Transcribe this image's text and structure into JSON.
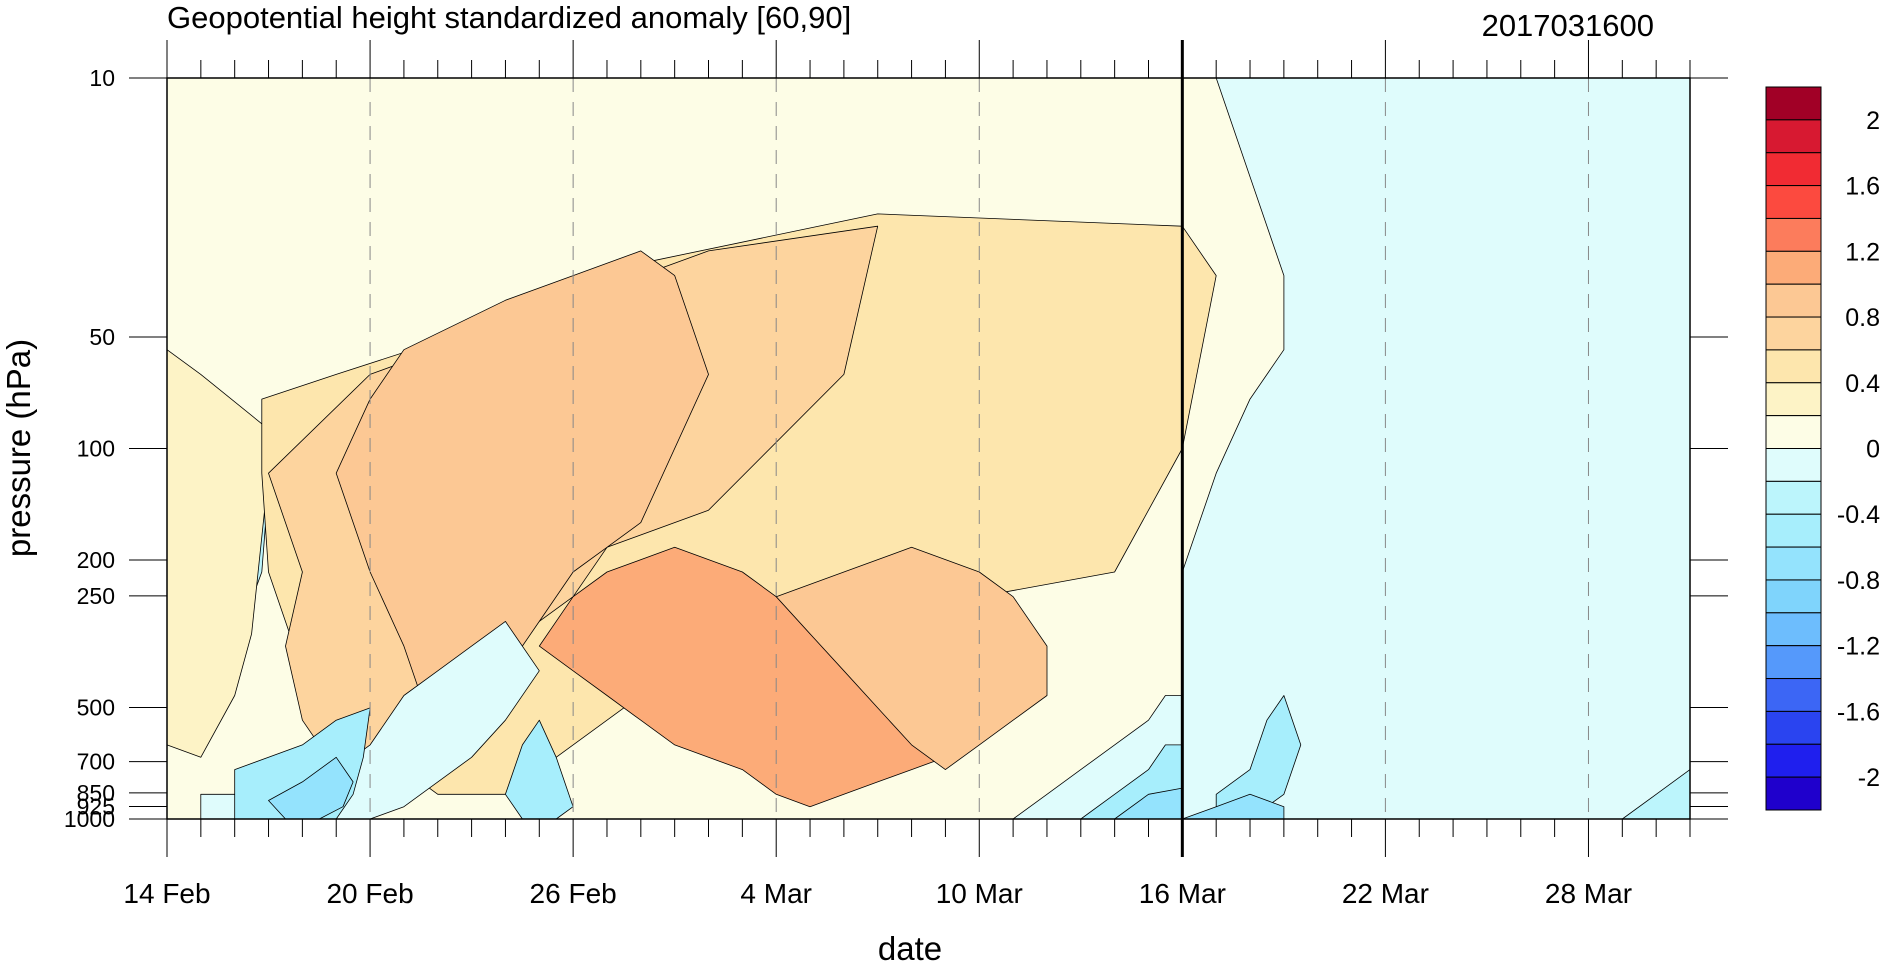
{
  "chart_data": {
    "type": "heatmap",
    "title": "Geopotential height standardized anomaly [60,90]",
    "date_label": "2017031600",
    "xlabel": "date",
    "ylabel": "pressure (hPa)",
    "x_tick_labels": [
      "14 Feb",
      "20 Feb",
      "26 Feb",
      "4 Mar",
      "10 Mar",
      "16 Mar",
      "22 Mar",
      "28 Mar"
    ],
    "x_tick_days": [
      0,
      6,
      12,
      18,
      24,
      30,
      36,
      42
    ],
    "x_range_days": [
      0,
      45
    ],
    "highlight_day": 30,
    "y_tick_labels": [
      "10",
      "50",
      "100",
      "200",
      "250",
      "500",
      "700",
      "850",
      "925",
      "1000"
    ],
    "y_tick_values": [
      10,
      50,
      100,
      200,
      250,
      500,
      700,
      850,
      925,
      1000
    ],
    "y_range": [
      10,
      1000
    ],
    "y_scale": "log",
    "y_reversed": true,
    "colorbar": {
      "labels": [
        "2",
        "1.6",
        "1.2",
        "0.8",
        "0.4",
        "0",
        "-0.4",
        "-0.8",
        "-1.2",
        "-1.6",
        "-2"
      ],
      "label_values": [
        2,
        1.6,
        1.2,
        0.8,
        0.4,
        0,
        -0.4,
        -0.8,
        -1.2,
        -1.6,
        -2
      ],
      "levels": [
        -2.2,
        -2.0,
        -1.8,
        -1.6,
        -1.4,
        -1.2,
        -1.0,
        -0.8,
        -0.6,
        -0.4,
        -0.2,
        0,
        0.2,
        0.4,
        0.6,
        0.8,
        1.0,
        1.2,
        1.4,
        1.6,
        1.8,
        2.0,
        2.2
      ],
      "colors": [
        "#1f00cc",
        "#1f1fee",
        "#2a44f0",
        "#3c66f5",
        "#5599fb",
        "#6dbdfd",
        "#7fd4fc",
        "#94e3fd",
        "#a7eefc",
        "#bcf5fc",
        "#dffcfc",
        "#fdfde6",
        "#fdf3c6",
        "#fde6ad",
        "#fdd49e",
        "#fcc894",
        "#fcab78",
        "#fc7c5c",
        "#fc4a3f",
        "#f12b33",
        "#d71931",
        "#a10026"
      ]
    },
    "regions": [
      {
        "value": -0.3,
        "points": [
          [
            0,
            30
          ],
          [
            1,
            29
          ],
          [
            2,
            28
          ],
          [
            3,
            27
          ],
          [
            2.8,
            20
          ],
          [
            2,
            14
          ],
          [
            1,
            12
          ],
          [
            0,
            12
          ]
        ]
      },
      {
        "value": 0.3,
        "points": [
          [
            0,
            38
          ],
          [
            1,
            36
          ],
          [
            2.8,
            32
          ],
          [
            3,
            28
          ],
          [
            2.5,
            15
          ],
          [
            2,
            10
          ],
          [
            1,
            5
          ],
          [
            0,
            6
          ]
        ]
      },
      {
        "value": 0.5,
        "points": [
          [
            2.8,
            34
          ],
          [
            5,
            36
          ],
          [
            9.5,
            40
          ],
          [
            14,
            45
          ],
          [
            21,
            49
          ],
          [
            30,
            48
          ],
          [
            31,
            44
          ],
          [
            30,
            30
          ],
          [
            28,
            20
          ],
          [
            24,
            18
          ],
          [
            20,
            15
          ],
          [
            18,
            14
          ],
          [
            16,
            12
          ],
          [
            14,
            10
          ],
          [
            13,
            8
          ],
          [
            12,
            6
          ],
          [
            11,
            4
          ],
          [
            10,
            2
          ],
          [
            8,
            2
          ],
          [
            6,
            6
          ],
          [
            4,
            12
          ],
          [
            3,
            20
          ],
          [
            2.8,
            28
          ]
        ]
      },
      {
        "value": 0.7,
        "points": [
          [
            6,
            36
          ],
          [
            12,
            42
          ],
          [
            16,
            46
          ],
          [
            21,
            48
          ],
          [
            20,
            36
          ],
          [
            16,
            25
          ],
          [
            13,
            22
          ],
          [
            12,
            18
          ],
          [
            10,
            14
          ],
          [
            9,
            10
          ],
          [
            8,
            6
          ],
          [
            7,
            3
          ],
          [
            6,
            2
          ],
          [
            5,
            4
          ],
          [
            4,
            8
          ],
          [
            3.5,
            14
          ],
          [
            4,
            20
          ],
          [
            3,
            28
          ]
        ]
      },
      {
        "value": 0.9,
        "points": [
          [
            7,
            38
          ],
          [
            10,
            42
          ],
          [
            12,
            44
          ],
          [
            14,
            46
          ],
          [
            15,
            44
          ],
          [
            16,
            36
          ],
          [
            14,
            24
          ],
          [
            13,
            22
          ],
          [
            12,
            20
          ],
          [
            11,
            16
          ],
          [
            10,
            12
          ],
          [
            9,
            8
          ],
          [
            8,
            6
          ],
          [
            7,
            14
          ],
          [
            6,
            20
          ],
          [
            5,
            28
          ],
          [
            6,
            34
          ]
        ]
      },
      {
        "value": 1.0,
        "points": [
          [
            11,
            14
          ],
          [
            12,
            12
          ],
          [
            13,
            10
          ],
          [
            14,
            8
          ],
          [
            15,
            6
          ],
          [
            16,
            5
          ],
          [
            17,
            4
          ],
          [
            18,
            2
          ],
          [
            19,
            1
          ],
          [
            20,
            2
          ],
          [
            21,
            3
          ],
          [
            22,
            4
          ],
          [
            23,
            5
          ],
          [
            22,
            8
          ],
          [
            21,
            11
          ],
          [
            20,
            14
          ],
          [
            19,
            16
          ],
          [
            18,
            18
          ],
          [
            17,
            20
          ],
          [
            15,
            22
          ],
          [
            13,
            20
          ],
          [
            12,
            18
          ]
        ]
      },
      {
        "value": 0.8,
        "points": [
          [
            18,
            18
          ],
          [
            20,
            20
          ],
          [
            22,
            22
          ],
          [
            24,
            20
          ],
          [
            25,
            18
          ],
          [
            26,
            14
          ],
          [
            26,
            10
          ],
          [
            25,
            8
          ],
          [
            24,
            6
          ],
          [
            23,
            4
          ],
          [
            22,
            6
          ],
          [
            21,
            9
          ],
          [
            20,
            12
          ],
          [
            19,
            15
          ]
        ]
      },
      {
        "value": -0.2,
        "points": [
          [
            1,
            2
          ],
          [
            3,
            2
          ],
          [
            5,
            4
          ],
          [
            6,
            6
          ],
          [
            7,
            10
          ],
          [
            8,
            12
          ],
          [
            9,
            14
          ],
          [
            10,
            16
          ],
          [
            11,
            12
          ],
          [
            10,
            8
          ],
          [
            9,
            5
          ],
          [
            8,
            3
          ],
          [
            7,
            1
          ],
          [
            6,
            0
          ],
          [
            4,
            0
          ],
          [
            2,
            0
          ],
          [
            1,
            0
          ]
        ]
      },
      {
        "value": -0.5,
        "points": [
          [
            2,
            4
          ],
          [
            4,
            6
          ],
          [
            5,
            8
          ],
          [
            6,
            9
          ],
          [
            5.8,
            5
          ],
          [
            5.5,
            2
          ],
          [
            5,
            0
          ],
          [
            3,
            0
          ],
          [
            2,
            0
          ]
        ]
      },
      {
        "value": -0.7,
        "points": [
          [
            3,
            1.5
          ],
          [
            4,
            3
          ],
          [
            5,
            5
          ],
          [
            5.5,
            3
          ],
          [
            5.2,
            1
          ],
          [
            4.5,
            0
          ],
          [
            3.5,
            0
          ]
        ]
      },
      {
        "value": -0.5,
        "points": [
          [
            10,
            2
          ],
          [
            10.5,
            6
          ],
          [
            11,
            8
          ],
          [
            11.5,
            5
          ],
          [
            12,
            1
          ],
          [
            11.5,
            0
          ],
          [
            10.5,
            0
          ]
        ]
      },
      {
        "value": -0.2,
        "points": [
          [
            25,
            0
          ],
          [
            26,
            2
          ],
          [
            27,
            4
          ],
          [
            28,
            6
          ],
          [
            29,
            8
          ],
          [
            29.5,
            10
          ],
          [
            30,
            10
          ],
          [
            31,
            8
          ],
          [
            32,
            4
          ],
          [
            33,
            0
          ]
        ]
      },
      {
        "value": -0.5,
        "points": [
          [
            27,
            0
          ],
          [
            28,
            2
          ],
          [
            29,
            4
          ],
          [
            29.5,
            6
          ],
          [
            30,
            6
          ],
          [
            30.5,
            4
          ],
          [
            30,
            2
          ],
          [
            29,
            0
          ]
        ]
      },
      {
        "value": -0.7,
        "points": [
          [
            28,
            0
          ],
          [
            29,
            2
          ],
          [
            30,
            2.5
          ],
          [
            30.5,
            1
          ],
          [
            30,
            0
          ]
        ]
      },
      {
        "value": -0.3,
        "points": [
          [
            32,
            60
          ],
          [
            34,
            58
          ],
          [
            35,
            55
          ],
          [
            36,
            45
          ],
          [
            37,
            40
          ],
          [
            38,
            35
          ],
          [
            39,
            30
          ],
          [
            40,
            28
          ],
          [
            41,
            32
          ],
          [
            42,
            38
          ],
          [
            43,
            46
          ],
          [
            44,
            55
          ],
          [
            44,
            60
          ],
          [
            41,
            60
          ],
          [
            38,
            60
          ],
          [
            35,
            60
          ]
        ]
      },
      {
        "value": -0.5,
        "points": [
          [
            34,
            60
          ],
          [
            35,
            58
          ],
          [
            36,
            50
          ],
          [
            37,
            46
          ],
          [
            38,
            44
          ],
          [
            39,
            44
          ],
          [
            40,
            46
          ],
          [
            41,
            52
          ],
          [
            42,
            58
          ],
          [
            42,
            60
          ],
          [
            38,
            60
          ]
        ]
      },
      {
        "value": 0.2,
        "points": [
          [
            35,
            30
          ],
          [
            36,
            34
          ],
          [
            37,
            38
          ],
          [
            38,
            40
          ],
          [
            40,
            40
          ],
          [
            41,
            38
          ],
          [
            42,
            36
          ],
          [
            43,
            30
          ],
          [
            43,
            20
          ],
          [
            42,
            10
          ],
          [
            41,
            4
          ],
          [
            40,
            2
          ],
          [
            38,
            2
          ],
          [
            37,
            4
          ],
          [
            36,
            8
          ],
          [
            35,
            15
          ],
          [
            34.5,
            22
          ]
        ]
      },
      {
        "value": 0.4,
        "points": [
          [
            37,
            8
          ],
          [
            38,
            12
          ],
          [
            38.5,
            20
          ],
          [
            39,
            28
          ],
          [
            40,
            32
          ],
          [
            41,
            30
          ],
          [
            42,
            24
          ],
          [
            42,
            16
          ],
          [
            41,
            10
          ],
          [
            40,
            6
          ],
          [
            39,
            4
          ],
          [
            38,
            4
          ]
        ]
      },
      {
        "value": -0.2,
        "points": [
          [
            30,
            0
          ],
          [
            30,
            20
          ],
          [
            31,
            28
          ],
          [
            32,
            34
          ],
          [
            33,
            38
          ],
          [
            33,
            44
          ],
          [
            32,
            52
          ],
          [
            31,
            60
          ],
          [
            45,
            60
          ],
          [
            45,
            0
          ]
        ]
      },
      {
        "value": -0.5,
        "points": [
          [
            31,
            2
          ],
          [
            32,
            4
          ],
          [
            32.5,
            8
          ],
          [
            33,
            10
          ],
          [
            33.5,
            6
          ],
          [
            33,
            2
          ],
          [
            32,
            0
          ],
          [
            31,
            0
          ]
        ]
      },
      {
        "value": -0.7,
        "points": [
          [
            30,
            0
          ],
          [
            31,
            1
          ],
          [
            32,
            2
          ],
          [
            33,
            1
          ],
          [
            33,
            0
          ]
        ]
      },
      {
        "value": -0.3,
        "points": [
          [
            43,
            0
          ],
          [
            44,
            2
          ],
          [
            45,
            4
          ],
          [
            45,
            0
          ]
        ]
      }
    ]
  }
}
